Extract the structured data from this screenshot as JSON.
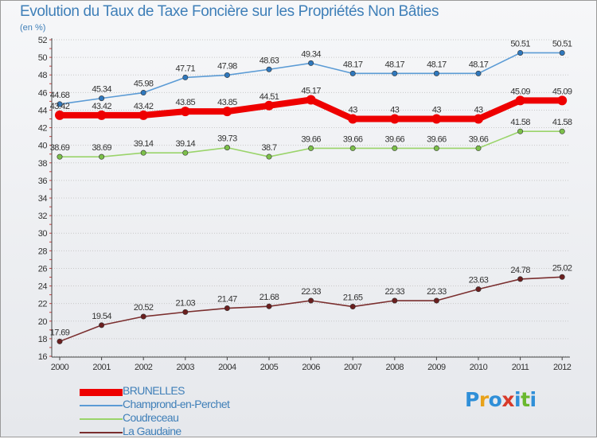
{
  "title": "Evolution du Taux de Taxe Foncière sur les Propriétés Non Bâties",
  "unit_label": "(en %)",
  "brand": [
    "P",
    "r",
    "o",
    "x",
    "i",
    "t",
    "i"
  ],
  "chart_data": {
    "type": "line",
    "title": "Evolution du Taux de Taxe Foncière sur les Propriétés Non Bâties",
    "ylabel": "(en %)",
    "xlabel": "",
    "ylim": [
      16,
      52
    ],
    "yticks": [
      16,
      18,
      20,
      22,
      24,
      26,
      28,
      30,
      32,
      34,
      36,
      38,
      40,
      42,
      44,
      46,
      48,
      50,
      52
    ],
    "x": [
      "2000",
      "2001",
      "2002",
      "2003",
      "2004",
      "2005",
      "2006",
      "2007",
      "2008",
      "2009",
      "2010",
      "2011",
      "2012"
    ],
    "grid": "horizontal",
    "legend_position": "bottom-left",
    "series": [
      {
        "name": "Champrond-en-Perchet",
        "color": "#5b9bd5",
        "marker": "#2f78bd",
        "values": [
          44.68,
          45.34,
          45.98,
          47.71,
          47.98,
          48.63,
          49.34,
          48.17,
          48.17,
          48.17,
          48.17,
          50.51,
          50.51
        ],
        "labels": [
          "44.68",
          "45.34",
          "45.98",
          "47.71",
          "47.98",
          "48.63",
          "49.34",
          "48.17",
          "48.17",
          "48.17",
          "48.17",
          "50.51",
          "50.51"
        ]
      },
      {
        "name": "Coudreceau",
        "color": "#9ad46a",
        "marker": "#7cc04a",
        "values": [
          38.69,
          38.69,
          39.14,
          39.14,
          39.73,
          38.7,
          39.66,
          39.66,
          39.66,
          39.66,
          39.66,
          41.58,
          41.58
        ],
        "labels": [
          "38.69",
          "38.69",
          "39.14",
          "39.14",
          "39.73",
          "38.7",
          "39.66",
          "39.66",
          "39.66",
          "39.66",
          "39.66",
          "41.58",
          "41.58"
        ]
      },
      {
        "name": "La Gaudaine",
        "color": "#7a2e2e",
        "marker": "#6b1f1f",
        "values": [
          17.69,
          19.54,
          20.52,
          21.03,
          21.47,
          21.68,
          22.33,
          21.65,
          22.33,
          22.33,
          23.63,
          24.78,
          25.02
        ],
        "labels": [
          "17.69",
          "19.54",
          "20.52",
          "21.03",
          "21.47",
          "21.68",
          "22.33",
          "21.65",
          "22.33",
          "22.33",
          "23.63",
          "24.78",
          "25.02"
        ]
      },
      {
        "name": "BRUNELLES",
        "color": "#ee0000",
        "marker": "#ee0000",
        "values": [
          43.42,
          43.42,
          43.42,
          43.85,
          43.85,
          44.51,
          45.17,
          43,
          43,
          43,
          43,
          45.09,
          45.09
        ],
        "labels": [
          "43.42",
          "43.42",
          "43.42",
          "43.85",
          "43.85",
          "44.51",
          "45.17",
          "43",
          "43",
          "43",
          "43",
          "45.09",
          "45.09"
        ]
      }
    ],
    "legend": [
      {
        "name": "BRUNELLES",
        "color": "#ee0000",
        "thick": true
      },
      {
        "name": "Champrond-en-Perchet",
        "color": "#5b9bd5",
        "thick": false
      },
      {
        "name": "Coudreceau",
        "color": "#9ad46a",
        "thick": false
      },
      {
        "name": "La Gaudaine",
        "color": "#7a2e2e",
        "thick": false
      }
    ]
  }
}
